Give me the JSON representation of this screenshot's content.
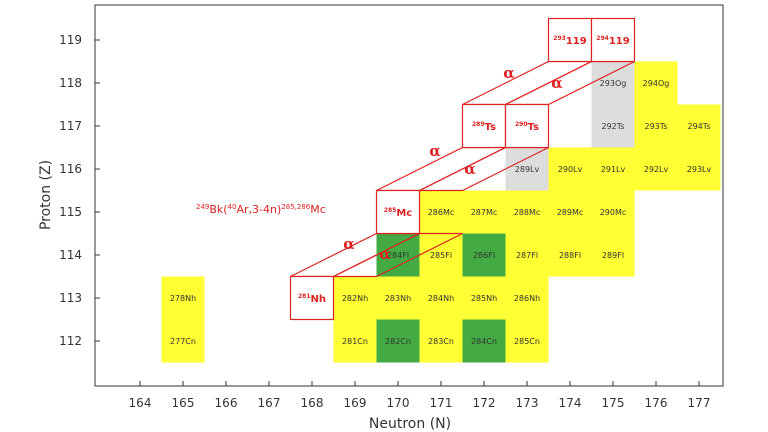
{
  "chart_data": {
    "type": "heatmap",
    "xlabel": "Neutron (N)",
    "ylabel": "Proton (Z)",
    "xlim": [
      163,
      178
    ],
    "ylim": [
      111.5,
      119.5
    ],
    "x_ticks": [
      164,
      165,
      166,
      167,
      168,
      169,
      170,
      171,
      172,
      173,
      174,
      175,
      176,
      177
    ],
    "y_ticks": [
      112,
      113,
      114,
      115,
      116,
      117,
      118,
      119
    ],
    "colors": {
      "yellow": "#ffff33",
      "green": "#44aa44",
      "gray": "#dddddd",
      "red": "#dd2222"
    },
    "nuclides": [
      {
        "n": 165,
        "z": 113,
        "label": "278Nh",
        "color": "yellow"
      },
      {
        "n": 165,
        "z": 112,
        "label": "277Cn",
        "color": "yellow"
      },
      {
        "n": 169,
        "z": 113,
        "label": "282Nh",
        "color": "yellow"
      },
      {
        "n": 169,
        "z": 112,
        "label": "281Cn",
        "color": "yellow"
      },
      {
        "n": 170,
        "z": 114,
        "label": "284Fl",
        "color": "green"
      },
      {
        "n": 170,
        "z": 113,
        "label": "283Nh",
        "color": "yellow"
      },
      {
        "n": 170,
        "z": 112,
        "label": "282Cn",
        "color": "green"
      },
      {
        "n": 171,
        "z": 115,
        "label": "286Mc",
        "color": "yellow"
      },
      {
        "n": 171,
        "z": 114,
        "label": "285Fl",
        "color": "yellow"
      },
      {
        "n": 171,
        "z": 113,
        "label": "284Nh",
        "color": "yellow"
      },
      {
        "n": 171,
        "z": 112,
        "label": "283Cn",
        "color": "yellow"
      },
      {
        "n": 172,
        "z": 115,
        "label": "287Mc",
        "color": "yellow"
      },
      {
        "n": 172,
        "z": 114,
        "label": "286Fl",
        "color": "green"
      },
      {
        "n": 172,
        "z": 113,
        "label": "285Nh",
        "color": "yellow"
      },
      {
        "n": 172,
        "z": 112,
        "label": "284Cn",
        "color": "green"
      },
      {
        "n": 173,
        "z": 116,
        "label": "289Lv",
        "color": "gray"
      },
      {
        "n": 173,
        "z": 115,
        "label": "288Mc",
        "color": "yellow"
      },
      {
        "n": 173,
        "z": 114,
        "label": "287Fl",
        "color": "yellow"
      },
      {
        "n": 173,
        "z": 113,
        "label": "286Nh",
        "color": "yellow"
      },
      {
        "n": 173,
        "z": 112,
        "label": "285Cn",
        "color": "yellow"
      },
      {
        "n": 174,
        "z": 116,
        "label": "290Lv",
        "color": "yellow"
      },
      {
        "n": 174,
        "z": 115,
        "label": "289Mc",
        "color": "yellow"
      },
      {
        "n": 174,
        "z": 114,
        "label": "288Fl",
        "color": "yellow"
      },
      {
        "n": 175,
        "z": 118,
        "label": "293Og",
        "color": "gray"
      },
      {
        "n": 175,
        "z": 117,
        "label": "292Ts",
        "color": "gray"
      },
      {
        "n": 175,
        "z": 116,
        "label": "291Lv",
        "color": "yellow"
      },
      {
        "n": 175,
        "z": 115,
        "label": "290Mc",
        "color": "yellow"
      },
      {
        "n": 175,
        "z": 114,
        "label": "289Fl",
        "color": "yellow"
      },
      {
        "n": 176,
        "z": 118,
        "label": "294Og",
        "color": "yellow"
      },
      {
        "n": 176,
        "z": 117,
        "label": "293Ts",
        "color": "yellow"
      },
      {
        "n": 176,
        "z": 116,
        "label": "292Lv",
        "color": "yellow"
      },
      {
        "n": 177,
        "z": 117,
        "label": "294Ts",
        "color": "yellow"
      },
      {
        "n": 177,
        "z": 116,
        "label": "293Lv",
        "color": "yellow"
      }
    ],
    "new_isotopes": [
      {
        "n": 168,
        "z": 113,
        "mass": "281",
        "symbol": "Nh"
      },
      {
        "n": 170,
        "z": 115,
        "mass": "285",
        "symbol": "Mc"
      },
      {
        "n": 172,
        "z": 117,
        "mass": "289",
        "symbol": "Ts"
      },
      {
        "n": 173,
        "z": 117,
        "mass": "290",
        "symbol": "Ts"
      },
      {
        "n": 174,
        "z": 119,
        "mass": "293",
        "symbol": "119"
      },
      {
        "n": 175,
        "z": 119,
        "mass": "294",
        "symbol": "119"
      }
    ],
    "alpha_labels": [
      "α",
      "α",
      "α",
      "α",
      "α",
      "α"
    ],
    "reaction": {
      "target_mass": "249",
      "target": "Bk(",
      "projectile_mass": "40",
      "projectile": "Ar,3-4n)",
      "product_mass": "285,286",
      "product": "Mc"
    }
  }
}
